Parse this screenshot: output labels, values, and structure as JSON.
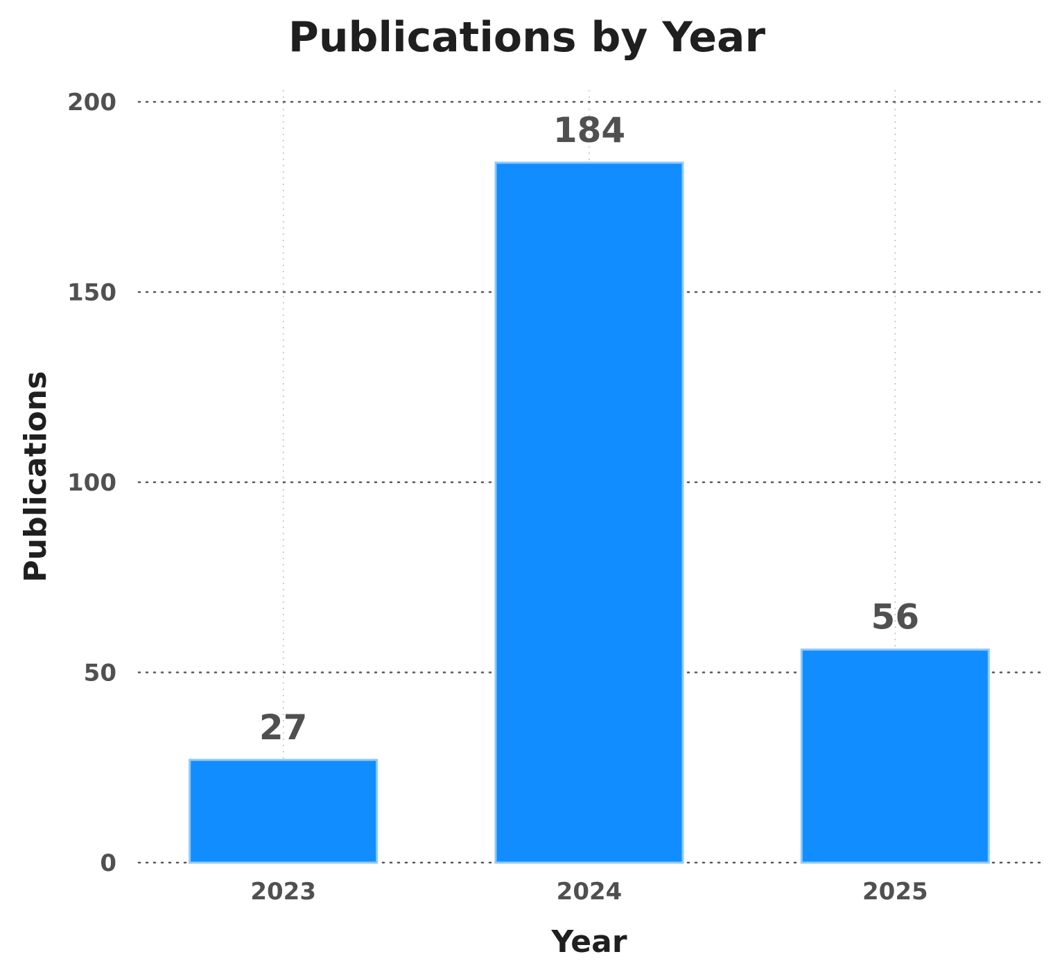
{
  "chart_data": {
    "type": "bar",
    "title": "Publications by Year",
    "xlabel": "Year",
    "ylabel": "Publications",
    "categories": [
      "2023",
      "2024",
      "2025"
    ],
    "values": [
      27,
      184,
      56
    ],
    "data_labels": [
      "27",
      "184",
      "56"
    ],
    "ylim": [
      0,
      200
    ],
    "yticks": [
      0,
      50,
      100,
      150,
      200
    ],
    "ytick_labels": [
      "0",
      "50",
      "100",
      "150",
      "200"
    ],
    "grid": true,
    "grid_style": "dotted",
    "legend": "none"
  },
  "colors": {
    "bar_fill": "#118DFF",
    "bar_outline": "#8FC8FF",
    "grid_line": "#555555",
    "text_dark": "#1f1f1f",
    "text_tick": "#505050"
  }
}
